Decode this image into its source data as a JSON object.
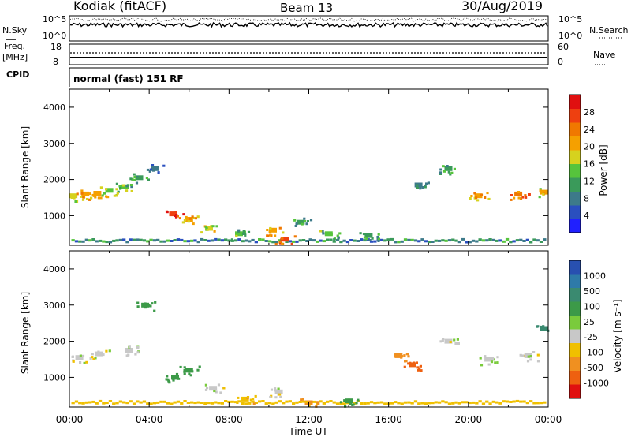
{
  "header": {
    "station": "Kodiak (fitACF)",
    "beam": "Beam 13",
    "date": "30/Aug/2019"
  },
  "strips": {
    "nsky_label": "N.Sky",
    "nsky_ticks": [
      "10^5",
      "10^0"
    ],
    "nsearch_label": "N.Search",
    "freq_label_1": "Freq.",
    "freq_label_2": "[MHz]",
    "freq_ticks": [
      "18",
      "8"
    ],
    "nave_label": "Nave",
    "nave_ticks": [
      "60",
      "0"
    ],
    "cpid_label": "CPID",
    "cpid_text": "normal (fast) 151 RF"
  },
  "colors": {
    "power_scale": [
      "#2020ff",
      "#2a4fbf",
      "#3d7a8a",
      "#3a9a5a",
      "#56c43c",
      "#d6d21e",
      "#f5a000",
      "#f07800",
      "#ee4010",
      "#e01010"
    ],
    "velocity_scale": [
      "#2850b0",
      "#2e7aa8",
      "#3a8a70",
      "#3c9a48",
      "#7acb3c",
      "#c8c8c8",
      "#f0c000",
      "#f09020",
      "#ee6010",
      "#e01010"
    ]
  },
  "chart_data": [
    {
      "type": "heatmap",
      "name": "power",
      "ylabel": "Slant Range [km]",
      "xlabel": "Time UT",
      "x_ticks": [
        "00:00",
        "04:00",
        "08:00",
        "12:00",
        "16:00",
        "20:00",
        "00:00"
      ],
      "y_ticks": [
        1000,
        2000,
        3000,
        4000
      ],
      "ylim": [
        180,
        4500
      ],
      "colorbar_label": "Power [dB]",
      "colorbar_ticks": [
        "4",
        "8",
        "12",
        "16",
        "20",
        "24",
        "28"
      ],
      "cells_time_range_km": [
        {
          "t": 0.2,
          "r": 1550,
          "v": 18
        },
        {
          "t": 0.8,
          "r": 1600,
          "v": 22
        },
        {
          "t": 1.4,
          "r": 1620,
          "v": 20
        },
        {
          "t": 2.0,
          "r": 1700,
          "v": 16
        },
        {
          "t": 2.8,
          "r": 1800,
          "v": 14
        },
        {
          "t": 3.5,
          "r": 2050,
          "v": 12
        },
        {
          "t": 4.3,
          "r": 2300,
          "v": 10
        },
        {
          "t": 5.2,
          "r": 1050,
          "v": 28
        },
        {
          "t": 6.0,
          "r": 900,
          "v": 22
        },
        {
          "t": 7.0,
          "r": 650,
          "v": 18
        },
        {
          "t": 8.5,
          "r": 500,
          "v": 14
        },
        {
          "t": 10.2,
          "r": 600,
          "v": 22
        },
        {
          "t": 10.8,
          "r": 350,
          "v": 26
        },
        {
          "t": 11.6,
          "r": 820,
          "v": 12
        },
        {
          "t": 13.0,
          "r": 500,
          "v": 14
        },
        {
          "t": 15.0,
          "r": 450,
          "v": 12
        },
        {
          "t": 17.5,
          "r": 1850,
          "v": 10
        },
        {
          "t": 19.0,
          "r": 2300,
          "v": 12
        },
        {
          "t": 20.5,
          "r": 1550,
          "v": 22
        },
        {
          "t": 22.5,
          "r": 1600,
          "v": 24
        },
        {
          "t": 23.8,
          "r": 1650,
          "v": 20
        }
      ]
    },
    {
      "type": "heatmap",
      "name": "velocity",
      "ylabel": "Slant Range [km]",
      "xlabel": "Time UT",
      "x_ticks": [
        "00:00",
        "04:00",
        "08:00",
        "12:00",
        "16:00",
        "20:00",
        "00:00"
      ],
      "y_ticks": [
        1000,
        2000,
        3000,
        4000
      ],
      "ylim": [
        180,
        4500
      ],
      "colorbar_label": "Velocity [m s⁻¹]",
      "colorbar_ticks": [
        "1000",
        "500",
        "100",
        "25",
        "-25",
        "-100",
        "-500",
        "-1000"
      ],
      "cells_time_range_km": [
        {
          "t": 0.5,
          "r": 1550,
          "v": 0
        },
        {
          "t": 1.5,
          "r": 1650,
          "v": -10
        },
        {
          "t": 3.0,
          "r": 1750,
          "v": 10
        },
        {
          "t": 3.8,
          "r": 3000,
          "v": 150
        },
        {
          "t": 5.3,
          "r": 1000,
          "v": 200
        },
        {
          "t": 6.0,
          "r": 1200,
          "v": 180
        },
        {
          "t": 7.2,
          "r": 700,
          "v": 0
        },
        {
          "t": 8.8,
          "r": 400,
          "v": -80
        },
        {
          "t": 10.5,
          "r": 600,
          "v": 0
        },
        {
          "t": 12.0,
          "r": 300,
          "v": -120
        },
        {
          "t": 14.0,
          "r": 350,
          "v": 150
        },
        {
          "t": 16.5,
          "r": 1600,
          "v": -200
        },
        {
          "t": 17.2,
          "r": 1350,
          "v": -300
        },
        {
          "t": 19.0,
          "r": 2000,
          "v": 0
        },
        {
          "t": 21.0,
          "r": 1500,
          "v": 10
        },
        {
          "t": 23.0,
          "r": 1600,
          "v": 0
        },
        {
          "t": 23.8,
          "r": 2350,
          "v": 300
        }
      ]
    }
  ]
}
